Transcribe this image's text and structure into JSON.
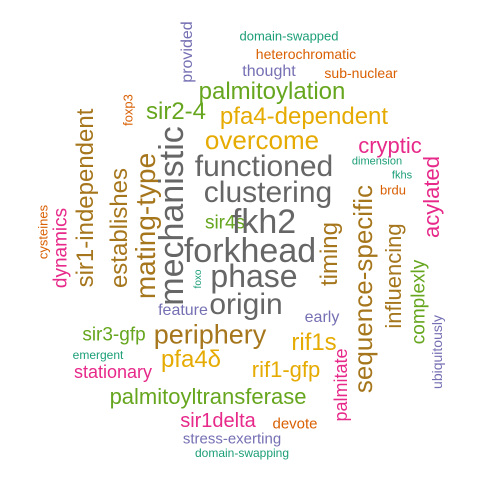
{
  "words": [
    {
      "text": "domain-swapped",
      "color": "#1b9e77"
    },
    {
      "text": "heterochromatic",
      "color": "#d95f02"
    },
    {
      "text": "provided",
      "color": "#7570b3"
    },
    {
      "text": "thought",
      "color": "#7570b3"
    },
    {
      "text": "sub-nuclear",
      "color": "#d95f02"
    },
    {
      "text": "foxp3",
      "color": "#d95f02"
    },
    {
      "text": "palmitoylation",
      "color": "#66a61e"
    },
    {
      "text": "sir2-4",
      "color": "#66a61e"
    },
    {
      "text": "pfa4-dependent",
      "color": "#e6ab02"
    },
    {
      "text": "sir1-independent",
      "color": "#a6761d"
    },
    {
      "text": "overcome",
      "color": "#e6ab02"
    },
    {
      "text": "cryptic",
      "color": "#e7298a"
    },
    {
      "text": "mating-type",
      "color": "#a6761d"
    },
    {
      "text": "establishes",
      "color": "#a6761d"
    },
    {
      "text": "mechanistic",
      "color": "#666666"
    },
    {
      "text": "functioned",
      "color": "#666666"
    },
    {
      "text": "dimension",
      "color": "#1b9e77"
    },
    {
      "text": "fkhs",
      "color": "#1b9e77"
    },
    {
      "text": "acylated",
      "color": "#e7298a"
    },
    {
      "text": "brdu",
      "color": "#d95f02"
    },
    {
      "text": "clustering",
      "color": "#666666"
    },
    {
      "text": "cysteines",
      "color": "#d95f02"
    },
    {
      "text": "dynamics",
      "color": "#e7298a"
    },
    {
      "text": "sir4s",
      "color": "#66a61e"
    },
    {
      "text": "fkh2",
      "color": "#666666"
    },
    {
      "text": "sequence-specific",
      "color": "#a6761d"
    },
    {
      "text": "influencing",
      "color": "#a6761d"
    },
    {
      "text": "forkhead",
      "color": "#666666"
    },
    {
      "text": "timing",
      "color": "#a6761d"
    },
    {
      "text": "phase",
      "color": "#666666"
    },
    {
      "text": "foxo",
      "color": "#1b9e77"
    },
    {
      "text": "complexly",
      "color": "#66a61e"
    },
    {
      "text": "origin",
      "color": "#666666"
    },
    {
      "text": "feature",
      "color": "#7570b3"
    },
    {
      "text": "early",
      "color": "#7570b3"
    },
    {
      "text": "ubiquitously",
      "color": "#7570b3"
    },
    {
      "text": "sir3-gfp",
      "color": "#66a61e"
    },
    {
      "text": "periphery",
      "color": "#a6761d"
    },
    {
      "text": "rif1s",
      "color": "#e6ab02"
    },
    {
      "text": "emergent",
      "color": "#1b9e77"
    },
    {
      "text": "pfa4δ",
      "color": "#e6ab02"
    },
    {
      "text": "stationary",
      "color": "#e7298a"
    },
    {
      "text": "rif1-gfp",
      "color": "#e6ab02"
    },
    {
      "text": "palmitate",
      "color": "#e7298a"
    },
    {
      "text": "palmitoyltransferase",
      "color": "#66a61e"
    },
    {
      "text": "sir1delta",
      "color": "#e7298a"
    },
    {
      "text": "devote",
      "color": "#d95f02"
    },
    {
      "text": "stress-exerting",
      "color": "#7570b3"
    },
    {
      "text": "domain-swapping",
      "color": "#1b9e77"
    }
  ]
}
